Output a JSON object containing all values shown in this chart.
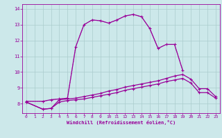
{
  "bg_color": "#cce8ea",
  "grid_color": "#aacccc",
  "line_color": "#990099",
  "xlim": [
    -0.5,
    23.5
  ],
  "ylim": [
    7.4,
    14.3
  ],
  "xlabel": "Windchill (Refroidissement éolien,°C)",
  "xticks": [
    0,
    1,
    2,
    3,
    4,
    5,
    6,
    7,
    8,
    9,
    10,
    11,
    12,
    13,
    14,
    15,
    16,
    17,
    18,
    19,
    20,
    21,
    22,
    23
  ],
  "yticks": [
    8,
    9,
    10,
    11,
    12,
    13,
    14
  ],
  "line_dotted": {
    "x": [
      0,
      1,
      2,
      3,
      4,
      5,
      6,
      7,
      8,
      9,
      10,
      11,
      12,
      13,
      14,
      15,
      16,
      17,
      18,
      19
    ],
    "y": [
      8.15,
      8.15,
      8.15,
      8.25,
      8.3,
      8.35,
      11.6,
      13.0,
      13.3,
      13.25,
      13.1,
      13.3,
      13.55,
      13.65,
      13.5,
      12.75,
      11.5,
      11.75,
      11.75,
      10.1
    ]
  },
  "line_main": {
    "x": [
      0,
      2,
      3,
      4,
      5,
      6,
      7,
      8,
      9,
      10,
      11,
      12,
      13,
      14,
      15,
      16,
      17,
      18,
      19
    ],
    "y": [
      8.15,
      8.15,
      8.25,
      8.3,
      8.35,
      11.6,
      13.0,
      13.3,
      13.25,
      13.1,
      13.3,
      13.55,
      13.65,
      13.5,
      12.75,
      11.5,
      11.75,
      11.75,
      10.1
    ]
  },
  "line_upper": {
    "x": [
      0,
      2,
      3,
      4,
      5,
      6,
      7,
      8,
      9,
      10,
      11,
      12,
      13,
      14,
      15,
      16,
      17,
      18,
      19,
      20,
      21,
      22,
      23
    ],
    "y": [
      8.1,
      7.65,
      7.7,
      8.25,
      8.3,
      8.35,
      8.45,
      8.55,
      8.65,
      8.8,
      8.9,
      9.05,
      9.15,
      9.25,
      9.35,
      9.45,
      9.6,
      9.75,
      9.85,
      9.55,
      8.95,
      8.95,
      8.45
    ]
  },
  "line_lower": {
    "x": [
      0,
      2,
      3,
      4,
      5,
      6,
      7,
      8,
      9,
      10,
      11,
      12,
      13,
      14,
      15,
      16,
      17,
      18,
      19,
      20,
      21,
      22,
      23
    ],
    "y": [
      8.1,
      7.65,
      7.7,
      8.1,
      8.2,
      8.25,
      8.3,
      8.4,
      8.5,
      8.6,
      8.7,
      8.85,
      8.95,
      9.05,
      9.15,
      9.25,
      9.4,
      9.5,
      9.6,
      9.3,
      8.7,
      8.7,
      8.35
    ]
  }
}
